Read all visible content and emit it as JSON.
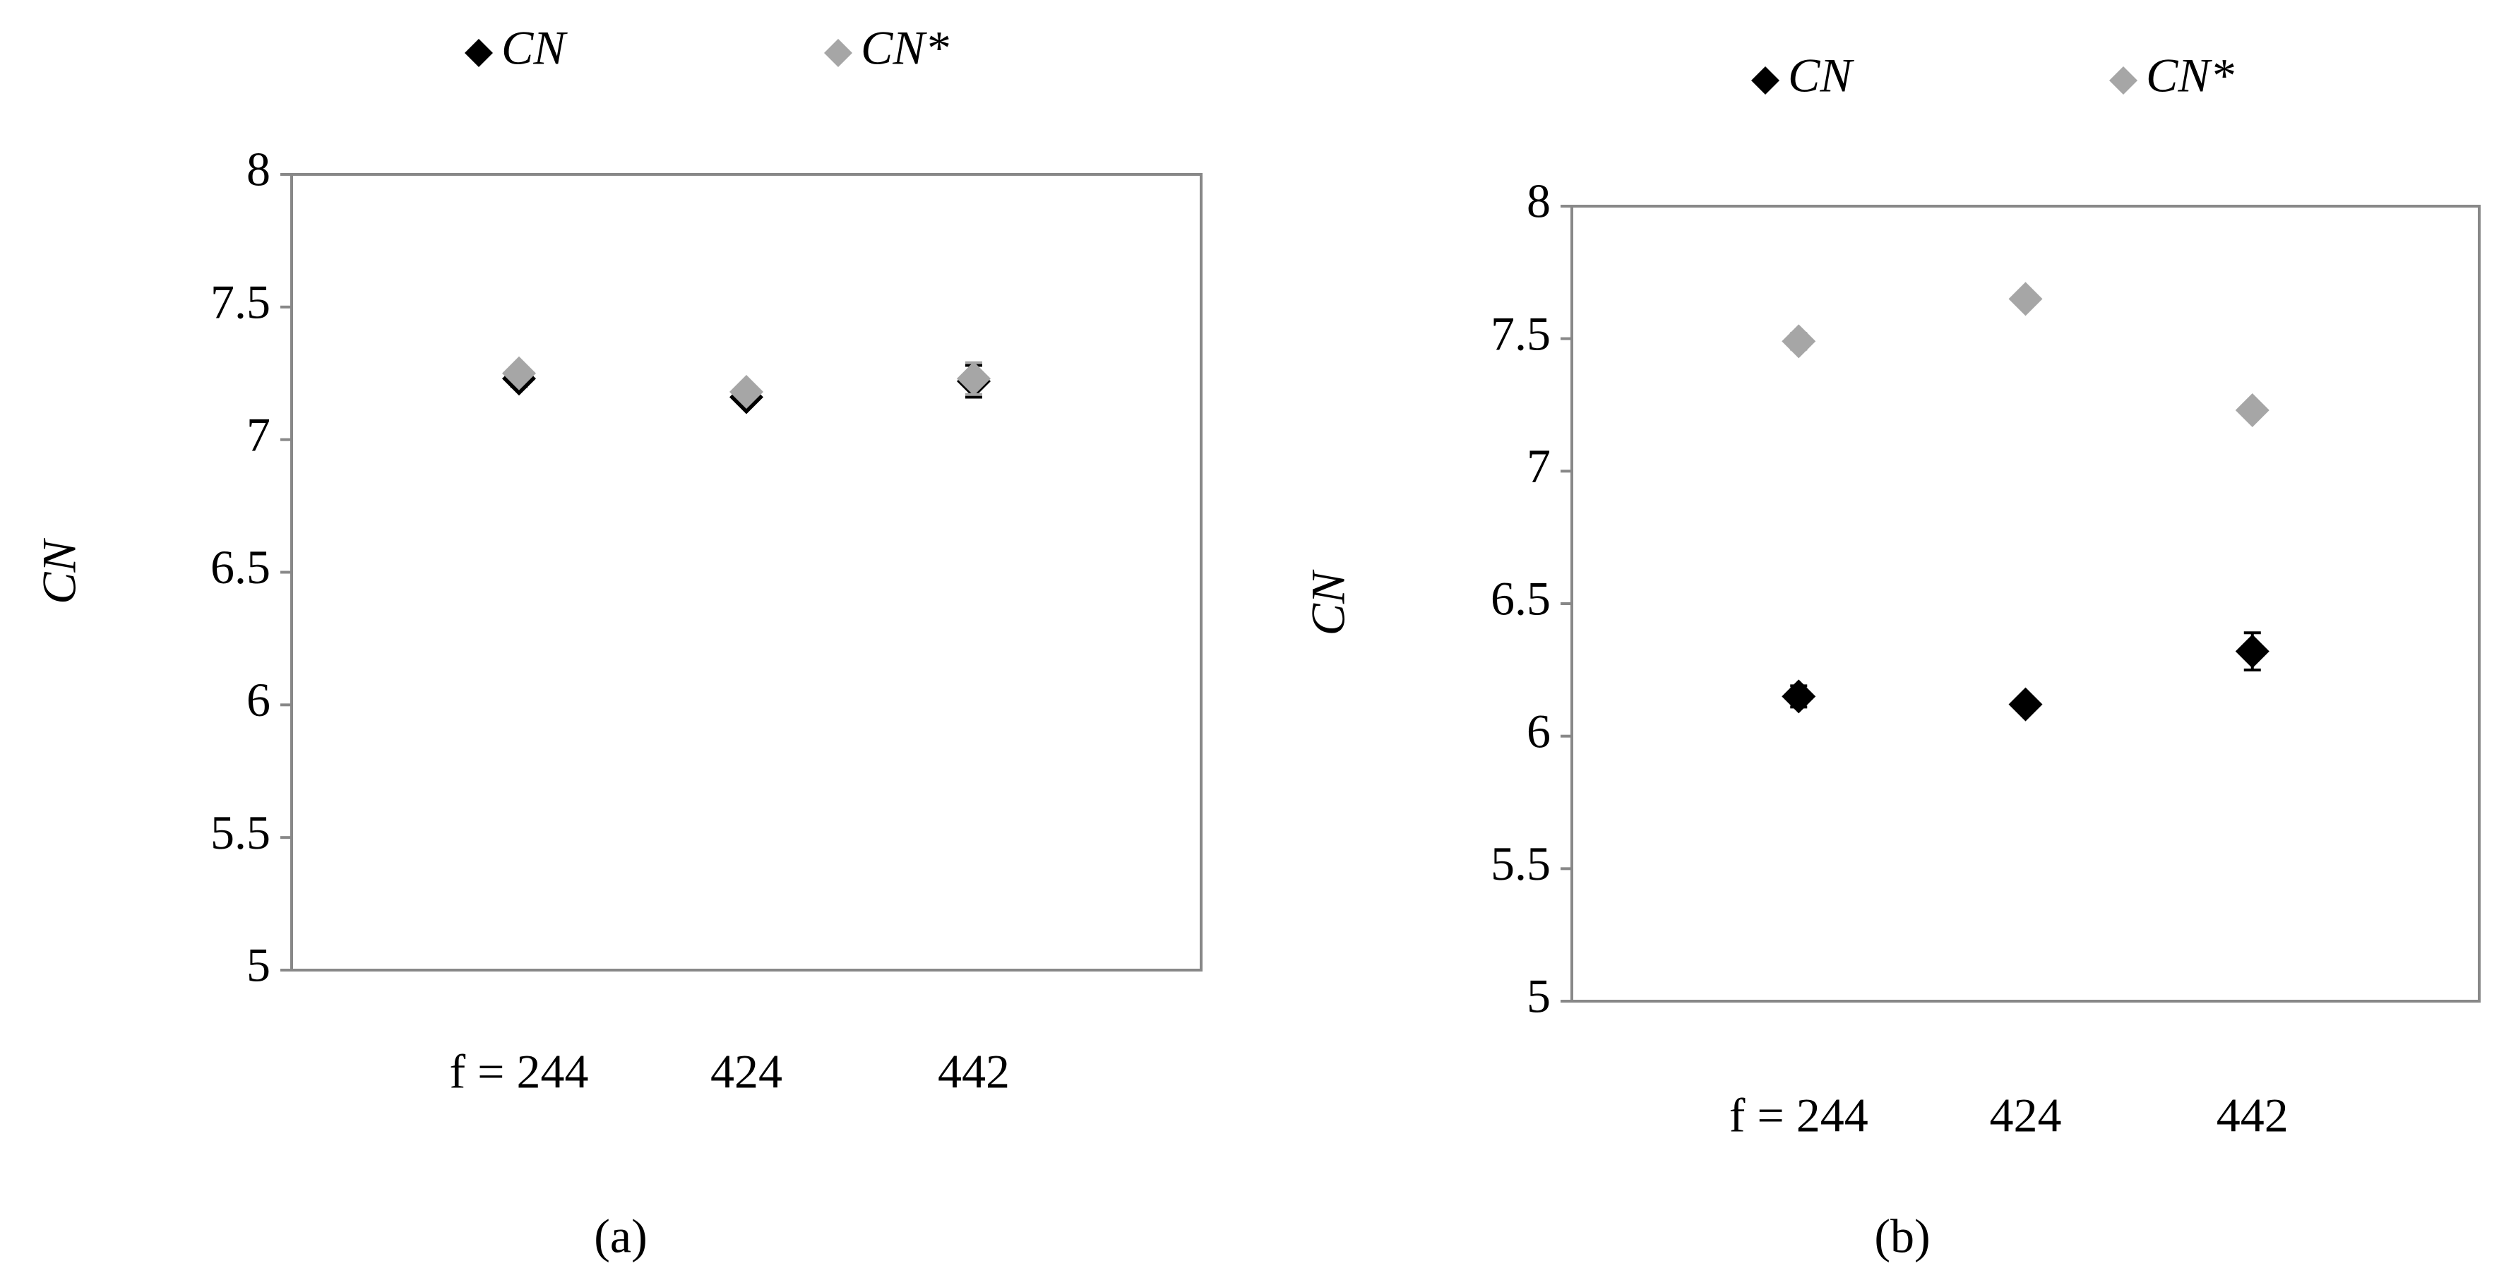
{
  "chart_data": [
    {
      "type": "scatter",
      "label": "(a)",
      "y_label": "CN",
      "categories": [
        "f = 244",
        "424",
        "442"
      ],
      "series": [
        {
          "name": "CN",
          "color": "#000000",
          "values": [
            7.23,
            7.16,
            7.22
          ],
          "errors": [
            0.03,
            0.02,
            0.06
          ]
        },
        {
          "name": "CN*",
          "color": "#a6a6a6",
          "values": [
            7.25,
            7.18,
            7.23
          ],
          "errors": [
            0.02,
            0.02,
            0.06
          ]
        }
      ],
      "ylim": [
        5,
        8
      ],
      "yticks": [
        5,
        5.5,
        6,
        6.5,
        7,
        7.5,
        8
      ],
      "legend": "top"
    },
    {
      "type": "scatter",
      "label": "(b)",
      "y_label": "CN",
      "categories": [
        "f = 244",
        "424",
        "442"
      ],
      "series": [
        {
          "name": "CN",
          "color": "#000000",
          "values": [
            6.15,
            6.12,
            6.32
          ],
          "errors": [
            0.04,
            0.02,
            0.07
          ]
        },
        {
          "name": "CN*",
          "color": "#a6a6a6",
          "values": [
            7.49,
            7.65,
            7.23
          ],
          "errors": [
            0.03,
            0.02,
            0.02
          ]
        }
      ],
      "ylim": [
        5,
        8
      ],
      "yticks": [
        5,
        5.5,
        6,
        6.5,
        7,
        7.5,
        8
      ],
      "legend": "top"
    }
  ]
}
